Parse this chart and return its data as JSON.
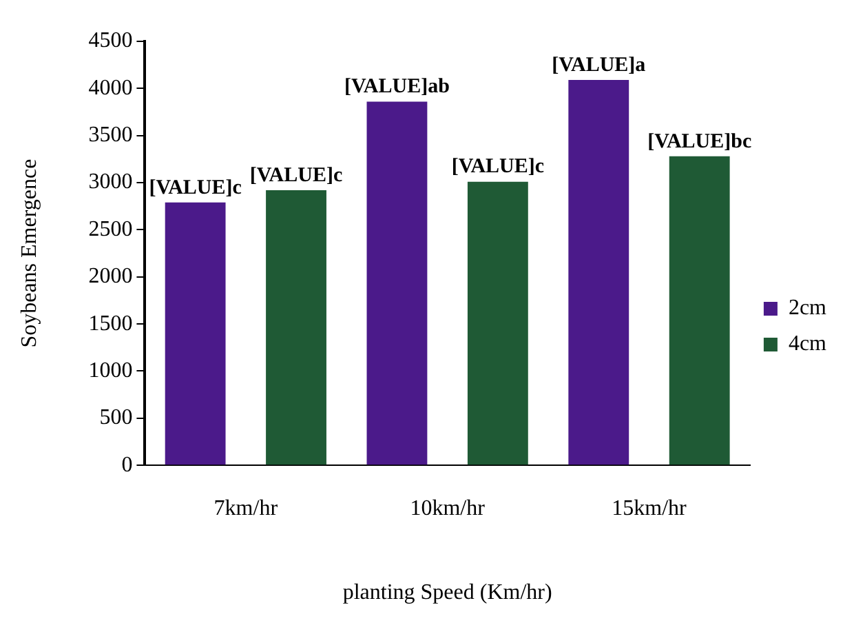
{
  "chart_data": {
    "type": "bar",
    "xlabel": "planting Speed (Km/hr)",
    "ylabel": "Soybeans Emergence",
    "categories": [
      "7km/hr",
      "10km/hr",
      "15km/hr"
    ],
    "series": [
      {
        "name": "2cm",
        "color": "#4b1a8a",
        "values": [
          2790,
          3860,
          4090
        ]
      },
      {
        "name": "4cm",
        "color": "#1f5a35",
        "values": [
          2920,
          3010,
          3280
        ]
      }
    ],
    "ylim": [
      0,
      4500
    ],
    "yticks": [
      0,
      500,
      1000,
      1500,
      2000,
      2500,
      3000,
      3500,
      4000,
      4500
    ],
    "grid": false,
    "legend": "right",
    "annotations": [
      "[VALUE]c",
      "[VALUE]c",
      "[VALUE]ab",
      "[VALUE]c",
      "[VALUE]a",
      "[VALUE]bc"
    ]
  }
}
